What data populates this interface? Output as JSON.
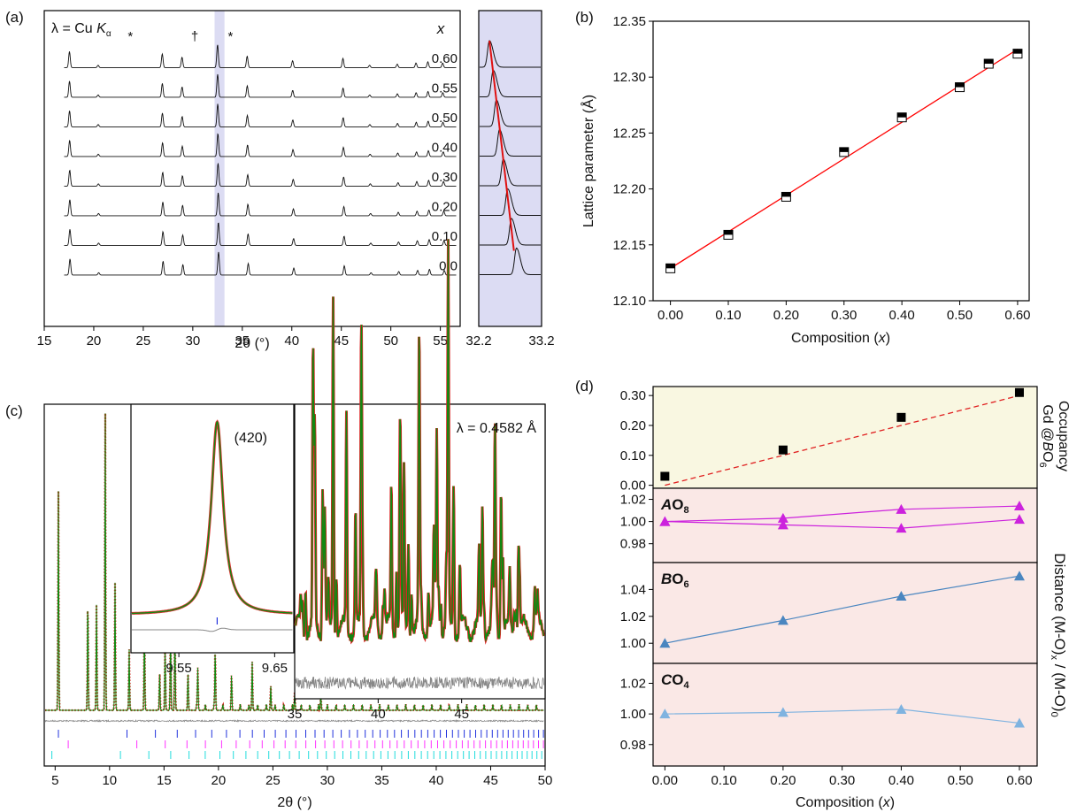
{
  "panels": {
    "a": "(a)",
    "b": "(b)",
    "c": "(c)",
    "d": "(d)"
  },
  "chart_data": [
    {
      "panel": "a",
      "type": "line",
      "annotation": "λ = Cu K",
      "annotation_sub": "α",
      "xlabel": "2θ (°)",
      "xlim": [
        15,
        57
      ],
      "xticks": [
        15,
        20,
        25,
        30,
        35,
        40,
        45,
        50,
        55
      ],
      "x_header": "x",
      "series_labels": [
        "0.60",
        "0.55",
        "0.50",
        "0.40",
        "0.30",
        "0.20",
        "0.10",
        "0.0"
      ],
      "markers": [
        {
          "symbol": "*",
          "x": 23.7
        },
        {
          "symbol": "†",
          "x": 30.2
        },
        {
          "symbol": "*",
          "x": 33.8
        }
      ],
      "highlight_x": [
        32.2,
        33.2
      ],
      "reflections": [
        {
          "x": 17.6,
          "h": 0.7
        },
        {
          "x": 20.5,
          "h": 0.1
        },
        {
          "x": 27.0,
          "h": 0.6
        },
        {
          "x": 29.0,
          "h": 0.45
        },
        {
          "x": 32.6,
          "h": 1.0
        },
        {
          "x": 35.6,
          "h": 0.5
        },
        {
          "x": 40.2,
          "h": 0.3
        },
        {
          "x": 45.3,
          "h": 0.4
        },
        {
          "x": 48.0,
          "h": 0.1
        },
        {
          "x": 50.8,
          "h": 0.15
        },
        {
          "x": 52.7,
          "h": 0.2
        },
        {
          "x": 53.9,
          "h": 0.25
        },
        {
          "x": 55.4,
          "h": 0.2
        }
      ],
      "peak_shift_per_x": -0.55
    },
    {
      "panel": "a-zoom",
      "type": "line",
      "xlim": [
        32.2,
        33.2
      ],
      "xticks": [
        32.2,
        33.2
      ],
      "peak_positions": [
        32.37,
        32.43,
        32.48,
        32.53,
        32.59,
        32.66,
        32.72,
        32.8
      ],
      "fit_line": [
        [
          32.37,
          1
        ],
        [
          32.76,
          8
        ]
      ]
    },
    {
      "panel": "b",
      "type": "scatter",
      "xlabel": "Composition (x)",
      "ylabel": "Lattice parameter (Å)",
      "xlim": [
        -0.03,
        0.62
      ],
      "ylim": [
        12.1,
        12.35
      ],
      "xticks": [
        "0.00",
        "0.10",
        "0.20",
        "0.30",
        "0.40",
        "0.50",
        "0.60"
      ],
      "yticks": [
        "12.10",
        "12.15",
        "12.20",
        "12.25",
        "12.30",
        "12.35"
      ],
      "x": [
        0.0,
        0.1,
        0.2,
        0.3,
        0.4,
        0.5,
        0.55,
        0.6
      ],
      "y": [
        12.129,
        12.159,
        12.193,
        12.233,
        12.264,
        12.291,
        12.312,
        12.321
      ],
      "fit": [
        [
          0.0,
          12.129
        ],
        [
          0.6,
          12.325
        ]
      ],
      "fit_color": "#ff0000"
    },
    {
      "panel": "c",
      "type": "line",
      "xlabel": "2θ (°)",
      "xlim": [
        4,
        50
      ],
      "xticks": [
        5,
        10,
        15,
        20,
        25,
        30,
        35,
        40,
        45,
        50
      ],
      "peaks": [
        {
          "x": 5.3,
          "h": 0.72
        },
        {
          "x": 8.0,
          "h": 0.37
        },
        {
          "x": 8.8,
          "h": 0.35
        },
        {
          "x": 9.6,
          "h": 1.0
        },
        {
          "x": 10.5,
          "h": 0.42
        },
        {
          "x": 11.8,
          "h": 0.2
        },
        {
          "x": 13.2,
          "h": 0.3
        },
        {
          "x": 14.6,
          "h": 0.12
        },
        {
          "x": 15.1,
          "h": 0.2
        },
        {
          "x": 15.6,
          "h": 0.26
        },
        {
          "x": 16.0,
          "h": 0.28
        },
        {
          "x": 17.2,
          "h": 0.12
        },
        {
          "x": 18.1,
          "h": 0.14
        },
        {
          "x": 19.7,
          "h": 0.2
        },
        {
          "x": 21.2,
          "h": 0.1
        },
        {
          "x": 23.1,
          "h": 0.16
        },
        {
          "x": 24.8,
          "h": 0.08
        },
        {
          "x": 27.0,
          "h": 0.06
        },
        {
          "x": 29.4,
          "h": 0.05
        }
      ],
      "tick_rows": [
        {
          "color": "#2233dd",
          "start": 5.3
        },
        {
          "color": "#ff33ff",
          "start": 6.2
        },
        {
          "color": "#22dddd",
          "start": 4.7
        }
      ],
      "colors": {
        "observed": "#dd2222",
        "calc": "#118811",
        "diff": "#888888"
      }
    },
    {
      "panel": "c-inset-1",
      "type": "line",
      "annotation": "(420)",
      "xlim": [
        9.5,
        9.67
      ],
      "xticks": [
        "9.55",
        "9.65"
      ],
      "peak": 9.59
    },
    {
      "panel": "c-inset-2",
      "type": "line",
      "annotation": "λ = 0.4582 Å",
      "xlim": [
        35,
        50
      ],
      "xticks": [
        35,
        40,
        45
      ]
    },
    {
      "panel": "d",
      "type": "scatter",
      "xlabel": "Composition (x)",
      "ylabel_right": "Distance (M-O)",
      "ylabel_right_sub": "x",
      "ylabel_right_tail": " / (M-O)",
      "ylabel_right_sub2": "0",
      "xticks": [
        "0.00",
        "0.10",
        "0.20",
        "0.30",
        "0.40",
        "0.50",
        "0.60"
      ],
      "xlim": [
        -0.02,
        0.63
      ],
      "subpanels": [
        {
          "label": "Occupancy",
          "label2": "Gd @",
          "label2_italic": "B",
          "label2_tail": "O",
          "label2_sub": "6",
          "ylim": [
            -0.01,
            0.33
          ],
          "yticks": [
            "0.00",
            "0.10",
            "0.20",
            "0.30"
          ],
          "x": [
            0.0,
            0.2,
            0.4,
            0.6
          ],
          "y": [
            0.03,
            0.118,
            0.227,
            0.31
          ],
          "fit": [
            [
              0.0,
              0.0
            ],
            [
              0.6,
              0.3
            ]
          ],
          "color": "#000000",
          "bg": "#f9f7e1"
        },
        {
          "label": "A",
          "label_tail": "O",
          "label_sub": "8",
          "ylim": [
            0.963,
            1.03
          ],
          "yticks": [
            "0.98",
            "1.00",
            "1.02"
          ],
          "x": [
            0.0,
            0.2,
            0.4,
            0.6
          ],
          "series": [
            {
              "values": [
                1.0,
                1.003,
                1.011,
                1.014
              ]
            },
            {
              "values": [
                1.0,
                0.997,
                0.994,
                1.002
              ]
            }
          ],
          "color": "#cc22dd",
          "bg": "#fae8e6"
        },
        {
          "label": "B",
          "label_tail": "O",
          "label_sub": "6",
          "ylim": [
            0.985,
            1.06
          ],
          "yticks": [
            "1.00",
            "1.02",
            "1.04"
          ],
          "x": [
            0.0,
            0.2,
            0.4,
            0.6
          ],
          "y": [
            1.0,
            1.017,
            1.035,
            1.05
          ],
          "color": "#4a86c0",
          "bg": "#fae8e6"
        },
        {
          "label": "C",
          "label_tail": "O",
          "label_sub": "4",
          "ylim": [
            0.966,
            1.033
          ],
          "yticks": [
            "0.98",
            "1.00",
            "1.02"
          ],
          "x": [
            0.0,
            0.2,
            0.4,
            0.6
          ],
          "y": [
            1.0,
            1.001,
            1.003,
            0.994
          ],
          "color": "#7fb3e0",
          "bg": "#fae8e6"
        }
      ]
    }
  ]
}
